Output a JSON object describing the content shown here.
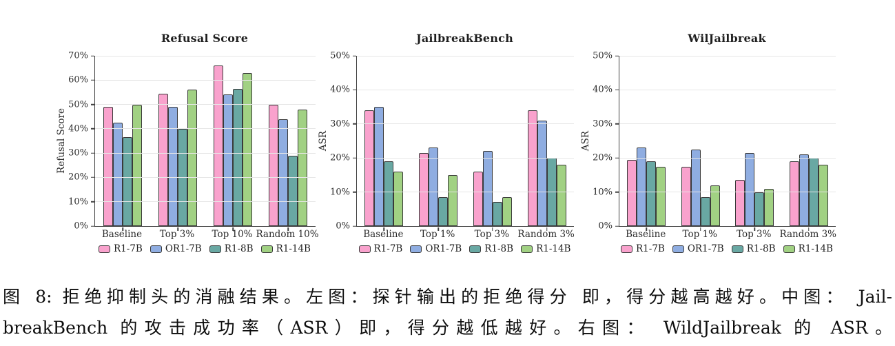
{
  "caption": {
    "line1": "图 8: 拒绝抑制头的消融结果。左图：探针输出的拒绝得分 即，得分越高越好。中图： Jail-",
    "line2": "breakBench 的攻击成功率（ASR）即，得分越低越好。右图： WildJailbreak 的 ASR。"
  },
  "palette": {
    "bar_edge": "#3a3a3a",
    "gridline": "#e6e6e6",
    "axis_spine": "#404040",
    "r1_7b": "#f9a2cd",
    "or1_7b": "#8fade1",
    "r1_8b": "#69a8a3",
    "r1_14b": "#a1d183"
  },
  "chart_data": [
    {
      "type": "bar",
      "title": "Refusal Score",
      "ylabel": "Refusal Score",
      "ylim": [
        0,
        70
      ],
      "ytick_step": 10,
      "ytick_format": "percent",
      "grid": true,
      "legend_position": "bottom",
      "categories": [
        "Baseline",
        "Top 3%",
        "Top 10%",
        "Random 10%"
      ],
      "series": [
        {
          "name": "R1-7B",
          "color": "#f9a2cd",
          "values": [
            49,
            54.5,
            66,
            50
          ]
        },
        {
          "name": "OR1-7B",
          "color": "#8fade1",
          "values": [
            42.5,
            49,
            54,
            44
          ]
        },
        {
          "name": "R1-8B",
          "color": "#69a8a3",
          "values": [
            36.5,
            40,
            56.5,
            29
          ]
        },
        {
          "name": "R1-14B",
          "color": "#a1d183",
          "values": [
            50,
            56,
            63,
            48
          ]
        }
      ]
    },
    {
      "type": "bar",
      "title": "JailbreakBench",
      "ylabel": "ASR",
      "ylim": [
        0,
        50
      ],
      "ytick_step": 10,
      "ytick_format": "percent",
      "grid": true,
      "legend_position": "bottom",
      "categories": [
        "Baseline",
        "Top 1%",
        "Top 3%",
        "Random 3%"
      ],
      "series": [
        {
          "name": "R1-7B",
          "color": "#f9a2cd",
          "values": [
            34,
            21.5,
            16,
            34
          ]
        },
        {
          "name": "OR1-7B",
          "color": "#8fade1",
          "values": [
            35,
            23,
            22,
            31
          ]
        },
        {
          "name": "R1-8B",
          "color": "#69a8a3",
          "values": [
            19,
            8.5,
            7,
            20
          ]
        },
        {
          "name": "R1-14B",
          "color": "#a1d183",
          "values": [
            16,
            15,
            8.5,
            18
          ]
        }
      ]
    },
    {
      "type": "bar",
      "title": "WilJailbreak",
      "ylabel": "ASR",
      "ylim": [
        0,
        50
      ],
      "ytick_step": 10,
      "ytick_format": "percent",
      "grid": true,
      "legend_position": "bottom",
      "categories": [
        "Baseline",
        "Top 1%",
        "Top 3%",
        "Random 3%"
      ],
      "series": [
        {
          "name": "R1-7B",
          "color": "#f9a2cd",
          "values": [
            19.5,
            17.5,
            13.5,
            19
          ]
        },
        {
          "name": "OR1-7B",
          "color": "#8fade1",
          "values": [
            23,
            22.5,
            21.5,
            21
          ]
        },
        {
          "name": "R1-8B",
          "color": "#69a8a3",
          "values": [
            19,
            8.5,
            10,
            20
          ]
        },
        {
          "name": "R1-14B",
          "color": "#a1d183",
          "values": [
            17.5,
            12,
            11,
            18
          ]
        }
      ]
    }
  ]
}
